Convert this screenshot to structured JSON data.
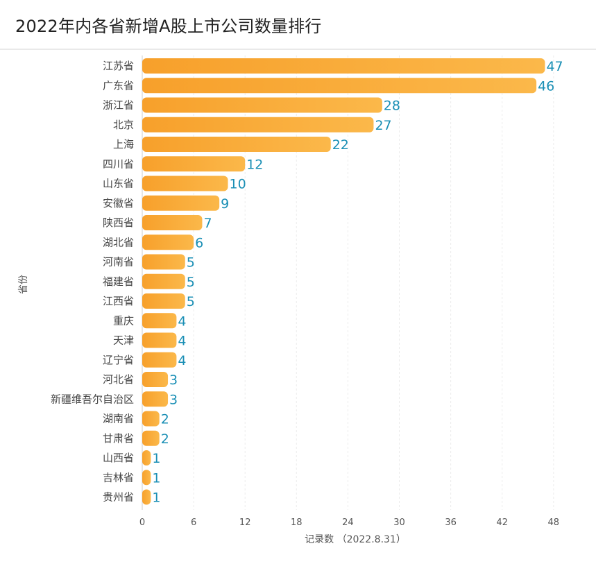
{
  "title": "2022年内各省新增A股上市公司数量排行",
  "chart_data": {
    "type": "bar",
    "orientation": "horizontal",
    "title": "2022年内各省新增A股上市公司数量排行",
    "xlabel": "记录数 （2022.8.31）",
    "ylabel": "省份",
    "xlim": [
      0,
      50
    ],
    "xticks": [
      0,
      6,
      12,
      18,
      24,
      30,
      36,
      42,
      48
    ],
    "grid": true,
    "data_labels": true,
    "categories": [
      "江苏省",
      "广东省",
      "浙江省",
      "北京",
      "上海",
      "四川省",
      "山东省",
      "安徽省",
      "陕西省",
      "湖北省",
      "河南省",
      "福建省",
      "江西省",
      "重庆",
      "天津",
      "辽宁省",
      "河北省",
      "新疆维吾尔自治区",
      "湖南省",
      "甘肃省",
      "山西省",
      "吉林省",
      "贵州省"
    ],
    "values": [
      47,
      46,
      28,
      27,
      22,
      12,
      10,
      9,
      7,
      6,
      5,
      5,
      5,
      4,
      4,
      4,
      3,
      3,
      2,
      2,
      1,
      1,
      1
    ],
    "bar_color_start": "#f7a02b",
    "bar_color_end": "#fbb84a",
    "label_color": "#1a8fb5"
  }
}
